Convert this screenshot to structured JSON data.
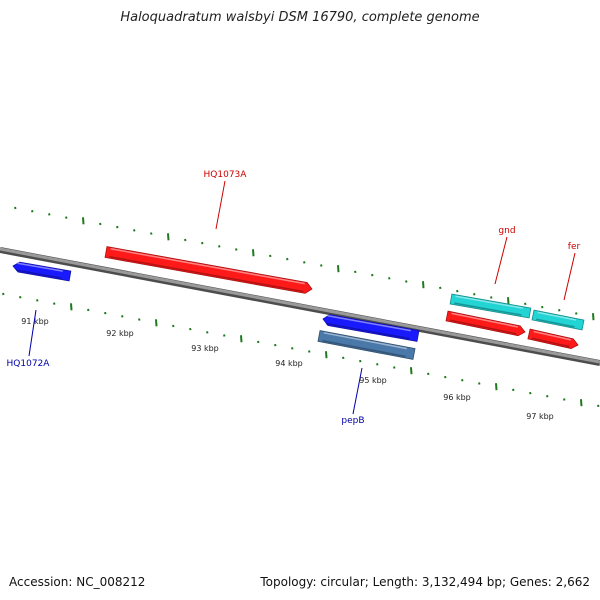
{
  "title": "Haloquadratum walsbyi DSM 16790, complete genome",
  "footer": {
    "accession": "Accession: NC_008212",
    "summary": "Topology: circular; Length: 3,132,494 bp; Genes: 2,662"
  },
  "colors": {
    "backbone": "#808080",
    "tick": "#1f7a1f",
    "forward_gene": "#ff1a1a",
    "reverse_gene": "#1a1aff",
    "cyan_gene": "#22d4d4",
    "steel_gene": "#4a78a8",
    "label_forward": "#cc0000",
    "label_reverse": "#0000aa"
  },
  "kbp_labels": [
    "91 kbp",
    "92 kbp",
    "93 kbp",
    "94 kbp",
    "95 kbp",
    "96 kbp",
    "97 kbp"
  ],
  "genes": [
    {
      "id": "HQ1072A",
      "label": "HQ1072A",
      "strand": "reverse",
      "color": "reverse_gene"
    },
    {
      "id": "HQ1073A",
      "label": "HQ1073A",
      "strand": "forward",
      "color": "forward_gene"
    },
    {
      "id": "pepB-upper",
      "label": "",
      "strand": "reverse",
      "color": "reverse_gene"
    },
    {
      "id": "pepB",
      "label": "pepB",
      "strand": "none",
      "color": "steel_gene"
    },
    {
      "id": "gnd-upper",
      "label": "",
      "strand": "none",
      "color": "cyan_gene"
    },
    {
      "id": "gnd",
      "label": "gnd",
      "strand": "forward",
      "color": "forward_gene"
    },
    {
      "id": "fer-upper",
      "label": "",
      "strand": "none",
      "color": "cyan_gene"
    },
    {
      "id": "fer",
      "label": "fer",
      "strand": "forward",
      "color": "forward_gene"
    }
  ]
}
